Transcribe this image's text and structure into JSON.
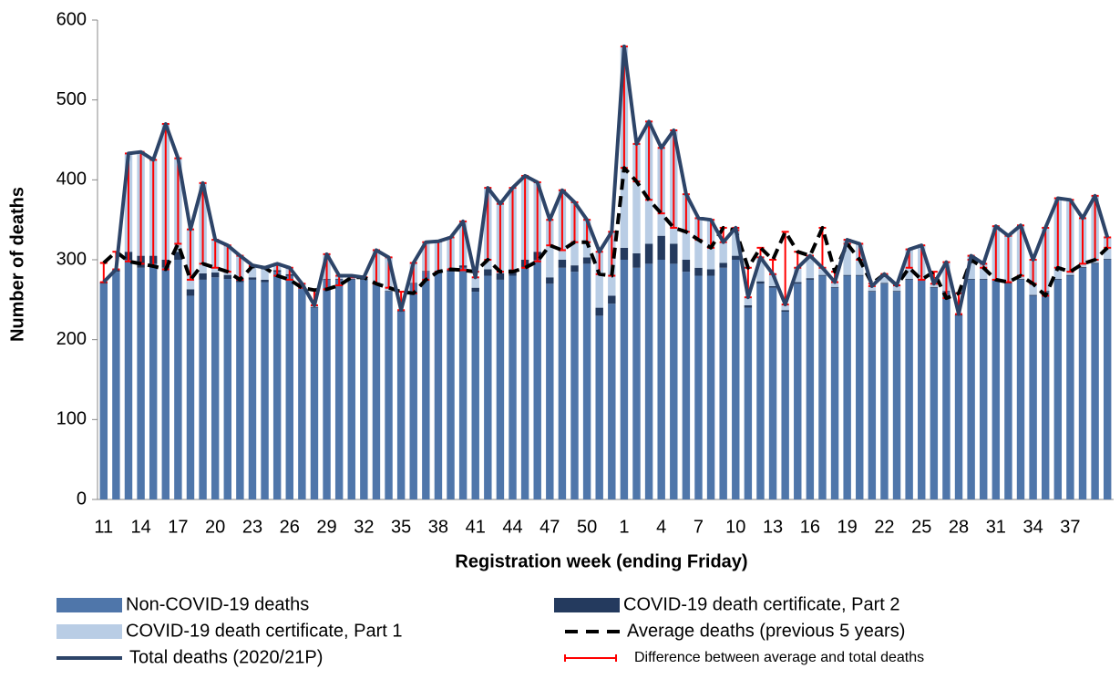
{
  "chart_data": {
    "type": "bar",
    "x_label": "Registration week (ending Friday)",
    "y_label": "Number of deaths",
    "categories": [
      "11",
      null,
      null,
      "14",
      null,
      null,
      "17",
      null,
      null,
      "20",
      null,
      null,
      "23",
      null,
      null,
      "26",
      null,
      null,
      "29",
      null,
      null,
      "32",
      null,
      null,
      "35",
      null,
      null,
      "38",
      null,
      null,
      "41",
      null,
      null,
      "44",
      null,
      null,
      "47",
      null,
      null,
      "50",
      null,
      null,
      "1",
      null,
      null,
      "4",
      null,
      null,
      "7",
      null,
      null,
      "10",
      null,
      null,
      "13",
      null,
      null,
      "16",
      null,
      null,
      "19",
      null,
      null,
      "22",
      null,
      null,
      "25",
      null,
      null,
      "28",
      null,
      null,
      "31",
      null,
      null,
      "34",
      null,
      null,
      "37",
      null,
      null,
      null
    ],
    "ylim": [
      0,
      600
    ],
    "yticks": [
      0,
      100,
      200,
      300,
      400,
      500,
      600
    ],
    "series": [
      {
        "name": "Non-COVID-19 deaths",
        "type": "bar",
        "color": "#4f76aa",
        "values": [
          270,
          285,
          300,
          290,
          295,
          290,
          300,
          255,
          275,
          278,
          276,
          272,
          275,
          272,
          285,
          280,
          265,
          240,
          275,
          275,
          275,
          275,
          270,
          260,
          235,
          270,
          285,
          285,
          285,
          290,
          260,
          280,
          275,
          280,
          290,
          300,
          270,
          290,
          285,
          295,
          230,
          245,
          300,
          290,
          295,
          300,
          295,
          285,
          280,
          280,
          290,
          300,
          240,
          270,
          265,
          235,
          270,
          275,
          280,
          265,
          280,
          280,
          260,
          270,
          260,
          275,
          275,
          265,
          260,
          230,
          275,
          275,
          275,
          270,
          275,
          255,
          260,
          275,
          280,
          290,
          295,
          300
        ]
      },
      {
        "name": "COVID-19 death certificate, Part 2",
        "type": "bar",
        "color": "#243a5e",
        "values": [
          2,
          3,
          10,
          15,
          10,
          10,
          10,
          8,
          8,
          6,
          5,
          4,
          3,
          3,
          2,
          2,
          1,
          1,
          1,
          1,
          1,
          1,
          1,
          1,
          1,
          1,
          1,
          1,
          2,
          3,
          5,
          8,
          8,
          8,
          10,
          10,
          8,
          10,
          8,
          8,
          10,
          10,
          15,
          18,
          25,
          30,
          25,
          15,
          10,
          8,
          6,
          5,
          3,
          3,
          2,
          2,
          2,
          2,
          1,
          1,
          1,
          1,
          1,
          1,
          1,
          1,
          1,
          1,
          1,
          1,
          1,
          1,
          1,
          1,
          1,
          1,
          1,
          1,
          1,
          1,
          1,
          1
        ]
      },
      {
        "name": "COVID-19 death certificate, Part 1",
        "type": "bar",
        "color": "#b9cde5",
        "values": [
          0,
          0,
          123,
          130,
          120,
          170,
          117,
          75,
          113,
          41,
          37,
          29,
          15,
          15,
          8,
          8,
          4,
          2,
          31,
          4,
          4,
          2,
          41,
          42,
          1,
          25,
          36,
          37,
          41,
          55,
          13,
          102,
          87,
          102,
          105,
          87,
          72,
          87,
          79,
          47,
          70,
          80,
          252,
          137,
          153,
          110,
          142,
          82,
          62,
          62,
          26,
          35,
          10,
          30,
          15,
          7,
          18,
          28,
          9,
          6,
          44,
          39,
          6,
          11,
          7,
          37,
          42,
          4,
          36,
          1,
          29,
          19,
          66,
          59,
          67,
          44,
          79,
          101,
          94,
          61,
          84,
          27
        ]
      },
      {
        "name": "Average deaths (previous 5 years)",
        "type": "line",
        "color": "#000000",
        "dashed": true,
        "values": [
          296,
          310,
          298,
          295,
          292,
          288,
          320,
          275,
          295,
          290,
          285,
          275,
          292,
          290,
          280,
          275,
          265,
          262,
          263,
          268,
          278,
          278,
          270,
          265,
          260,
          258,
          275,
          285,
          288,
          287,
          285,
          300,
          285,
          285,
          290,
          298,
          318,
          312,
          322,
          322,
          282,
          280,
          415,
          398,
          375,
          358,
          340,
          335,
          325,
          315,
          340,
          337,
          290,
          315,
          300,
          335,
          310,
          305,
          340,
          285,
          320,
          300,
          270,
          282,
          268,
          290,
          275,
          285,
          252,
          258,
          300,
          290,
          275,
          272,
          280,
          270,
          255,
          290,
          285,
          295,
          300,
          315
        ]
      },
      {
        "name": "Total deaths (2020/21P)",
        "type": "line",
        "color": "#2d4468",
        "values": [
          272,
          288,
          433,
          435,
          425,
          470,
          427,
          338,
          396,
          325,
          318,
          305,
          293,
          290,
          295,
          290,
          270,
          243,
          307,
          280,
          280,
          278,
          312,
          303,
          237,
          296,
          322,
          323,
          328,
          348,
          278,
          390,
          370,
          390,
          405,
          397,
          350,
          387,
          372,
          350,
          310,
          335,
          567,
          445,
          473,
          440,
          462,
          382,
          352,
          350,
          322,
          340,
          253,
          303,
          282,
          244,
          290,
          305,
          290,
          272,
          325,
          320,
          267,
          282,
          268,
          313,
          318,
          270,
          297,
          232,
          305,
          295,
          342,
          330,
          343,
          300,
          340,
          377,
          375,
          352,
          380,
          328
        ]
      }
    ],
    "difference": {
      "name": "Difference between average and total deaths",
      "color": "#ff0000"
    }
  }
}
